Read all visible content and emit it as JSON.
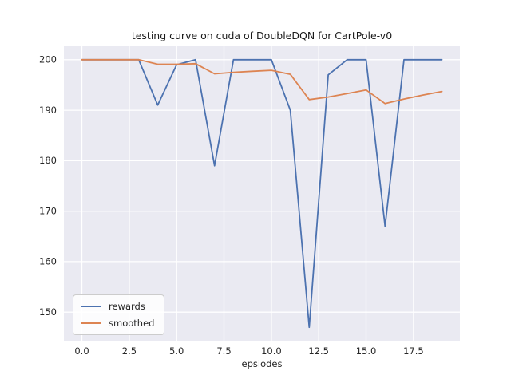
{
  "chart_data": {
    "type": "line",
    "title": "testing curve on cuda of DoubleDQN for CartPole-v0",
    "xlabel": "epsiodes",
    "ylabel": "",
    "x": [
      0,
      1,
      2,
      3,
      4,
      5,
      6,
      7,
      8,
      9,
      10,
      11,
      12,
      13,
      14,
      15,
      16,
      17,
      18,
      19
    ],
    "series": [
      {
        "name": "rewards",
        "color": "#4c72b0",
        "values": [
          200,
          200,
          200,
          200,
          191,
          199,
          200,
          179,
          200,
          200,
          200,
          190,
          147,
          197,
          200,
          200,
          167,
          200,
          200,
          200
        ]
      },
      {
        "name": "smoothed",
        "color": "#dd8452",
        "values": [
          200,
          200,
          200,
          200,
          199.1,
          199.1,
          199.2,
          197.2,
          197.5,
          197.7,
          197.9,
          197.1,
          192.1,
          192.6,
          193.3,
          194.0,
          191.3,
          192.2,
          193.0,
          193.7
        ]
      }
    ],
    "xlim": [
      -0.95,
      19.95
    ],
    "ylim": [
      144.35,
      202.65
    ],
    "xticks": [
      0,
      2.5,
      5,
      7.5,
      10,
      12.5,
      15,
      17.5
    ],
    "xtick_labels": [
      "0.0",
      "2.5",
      "5.0",
      "7.5",
      "10.0",
      "12.5",
      "15.0",
      "17.5"
    ],
    "yticks": [
      150,
      160,
      170,
      180,
      190,
      200
    ],
    "ytick_labels": [
      "150",
      "160",
      "170",
      "180",
      "190",
      "200"
    ],
    "grid": true,
    "legend_position": "lower left",
    "axes_bg": "#eaeaf2",
    "grid_color": "#ffffff",
    "text_color": "#262626"
  }
}
